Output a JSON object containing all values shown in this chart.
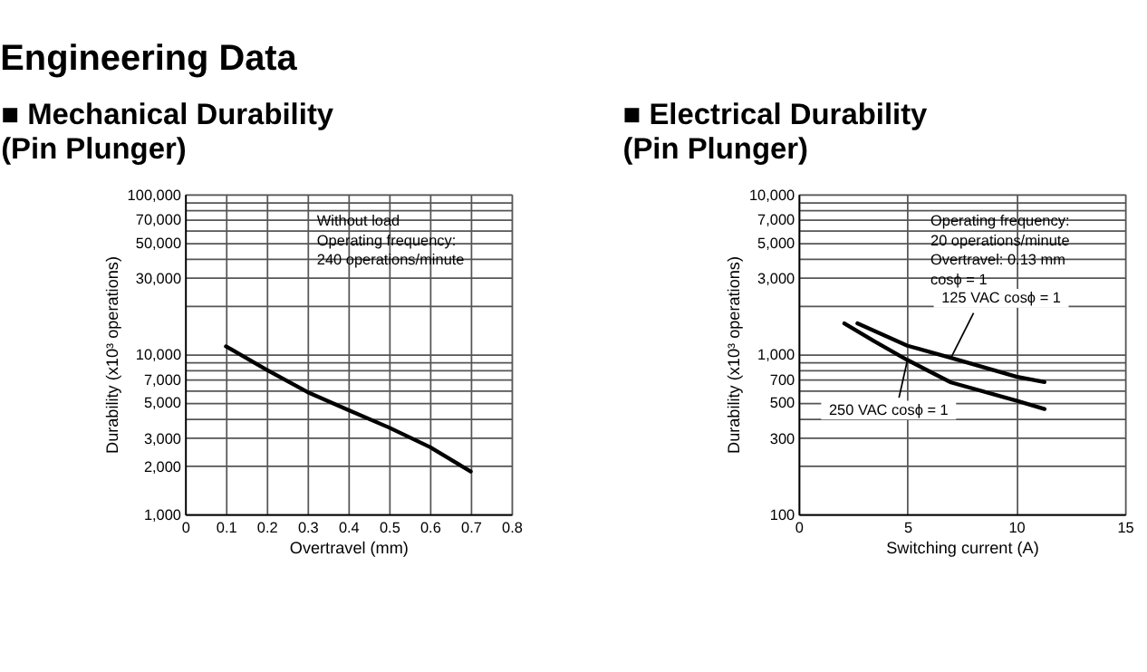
{
  "chart_data": [
    {
      "type": "line",
      "title": "■ Mechanical Durability\n(Pin Plunger)",
      "xlabel": "Overtravel (mm)",
      "ylabel": "Durability (x10³ operations)",
      "annotations": [
        "Engineering Data",
        "Without load",
        "Operating frequency:",
        "240 operations/minute"
      ],
      "series": [
        {
          "color": "#000000",
          "x": [
            0.1,
            0.2,
            0.3,
            0.4,
            0.5,
            0.6,
            0.7
          ],
          "values": [
            11200,
            8000,
            5800,
            4480,
            3480,
            2630,
            1850
          ]
        }
      ],
      "log": "y",
      "grid": true,
      "legend": false,
      "line_style": "solid",
      "marker": "none",
      "xlim": [
        0,
        0.8
      ],
      "xticks": [
        0,
        0.1,
        0.2,
        0.3,
        0.4,
        0.5,
        0.6,
        0.7,
        0.8
      ],
      "ylim": [
        1000,
        100000
      ],
      "yticks": [
        {
          "value": 1000,
          "label": "1,000"
        },
        {
          "value": 2000,
          "label": "2,000"
        },
        {
          "value": 3000,
          "label": "3,000"
        },
        {
          "value": 4000,
          "label": null
        },
        {
          "value": 5000,
          "label": "5,000"
        },
        {
          "value": 6000,
          "label": null
        },
        {
          "value": 7000,
          "label": "7,000"
        },
        {
          "value": 8000,
          "label": null
        },
        {
          "value": 9000,
          "label": null
        },
        {
          "value": 10000,
          "label": "10,000"
        },
        {
          "value": 20000,
          "label": null
        },
        {
          "value": 30000,
          "label": "30,000"
        },
        {
          "value": 40000,
          "label": null
        },
        {
          "value": 50000,
          "label": "50,000"
        },
        {
          "value": 60000,
          "label": null
        },
        {
          "value": 70000,
          "label": "70,000"
        },
        {
          "value": 80000,
          "label": null
        },
        {
          "value": 90000,
          "label": null
        },
        {
          "value": 100000,
          "label": "100,000"
        }
      ]
    },
    {
      "type": "line",
      "title": "■ Electrical Durability\n(Pin Plunger)",
      "xlabel": "Switching current (A)",
      "ylabel": "Durability (x10³ operations)",
      "annotations": [
        "Operating frequency:",
        "20 operations/minute",
        "Overtravel: 0.13 mm",
        "cosϕ = 1"
      ],
      "series": [
        {
          "name": "125 VAC cosϕ = 1",
          "color": "#000000",
          "x": [
            2.7,
            5,
            7,
            10,
            11.3
          ],
          "values": [
            1560,
            1130,
            950,
            725,
            670
          ]
        },
        {
          "name": "250 VAC cosϕ = 1",
          "color": "#000000",
          "x": [
            2.1,
            3.5,
            5,
            7,
            10,
            11.3
          ],
          "values": [
            1560,
            1200,
            920,
            667,
            513,
            455
          ]
        }
      ],
      "log": "y",
      "grid": true,
      "legend": false,
      "line_style": "solid",
      "marker": "none",
      "xlim": [
        0,
        15
      ],
      "xticks": [
        0,
        5,
        10,
        15
      ],
      "ylim": [
        100,
        10000
      ],
      "yticks": [
        {
          "value": 100,
          "label": "100"
        },
        {
          "value": 200,
          "label": null
        },
        {
          "value": 300,
          "label": "300"
        },
        {
          "value": 400,
          "label": null
        },
        {
          "value": 500,
          "label": "500"
        },
        {
          "value": 600,
          "label": null
        },
        {
          "value": 700,
          "label": "700"
        },
        {
          "value": 800,
          "label": null
        },
        {
          "value": 900,
          "label": null
        },
        {
          "value": 1000,
          "label": "1,000"
        },
        {
          "value": 2000,
          "label": null
        },
        {
          "value": 3000,
          "label": "3,000"
        },
        {
          "value": 4000,
          "label": null
        },
        {
          "value": 5000,
          "label": "5,000"
        },
        {
          "value": 6000,
          "label": null
        },
        {
          "value": 7000,
          "label": "7,000"
        },
        {
          "value": 8000,
          "label": null
        },
        {
          "value": 9000,
          "label": null
        },
        {
          "value": 10000,
          "label": "10,000"
        }
      ]
    }
  ]
}
